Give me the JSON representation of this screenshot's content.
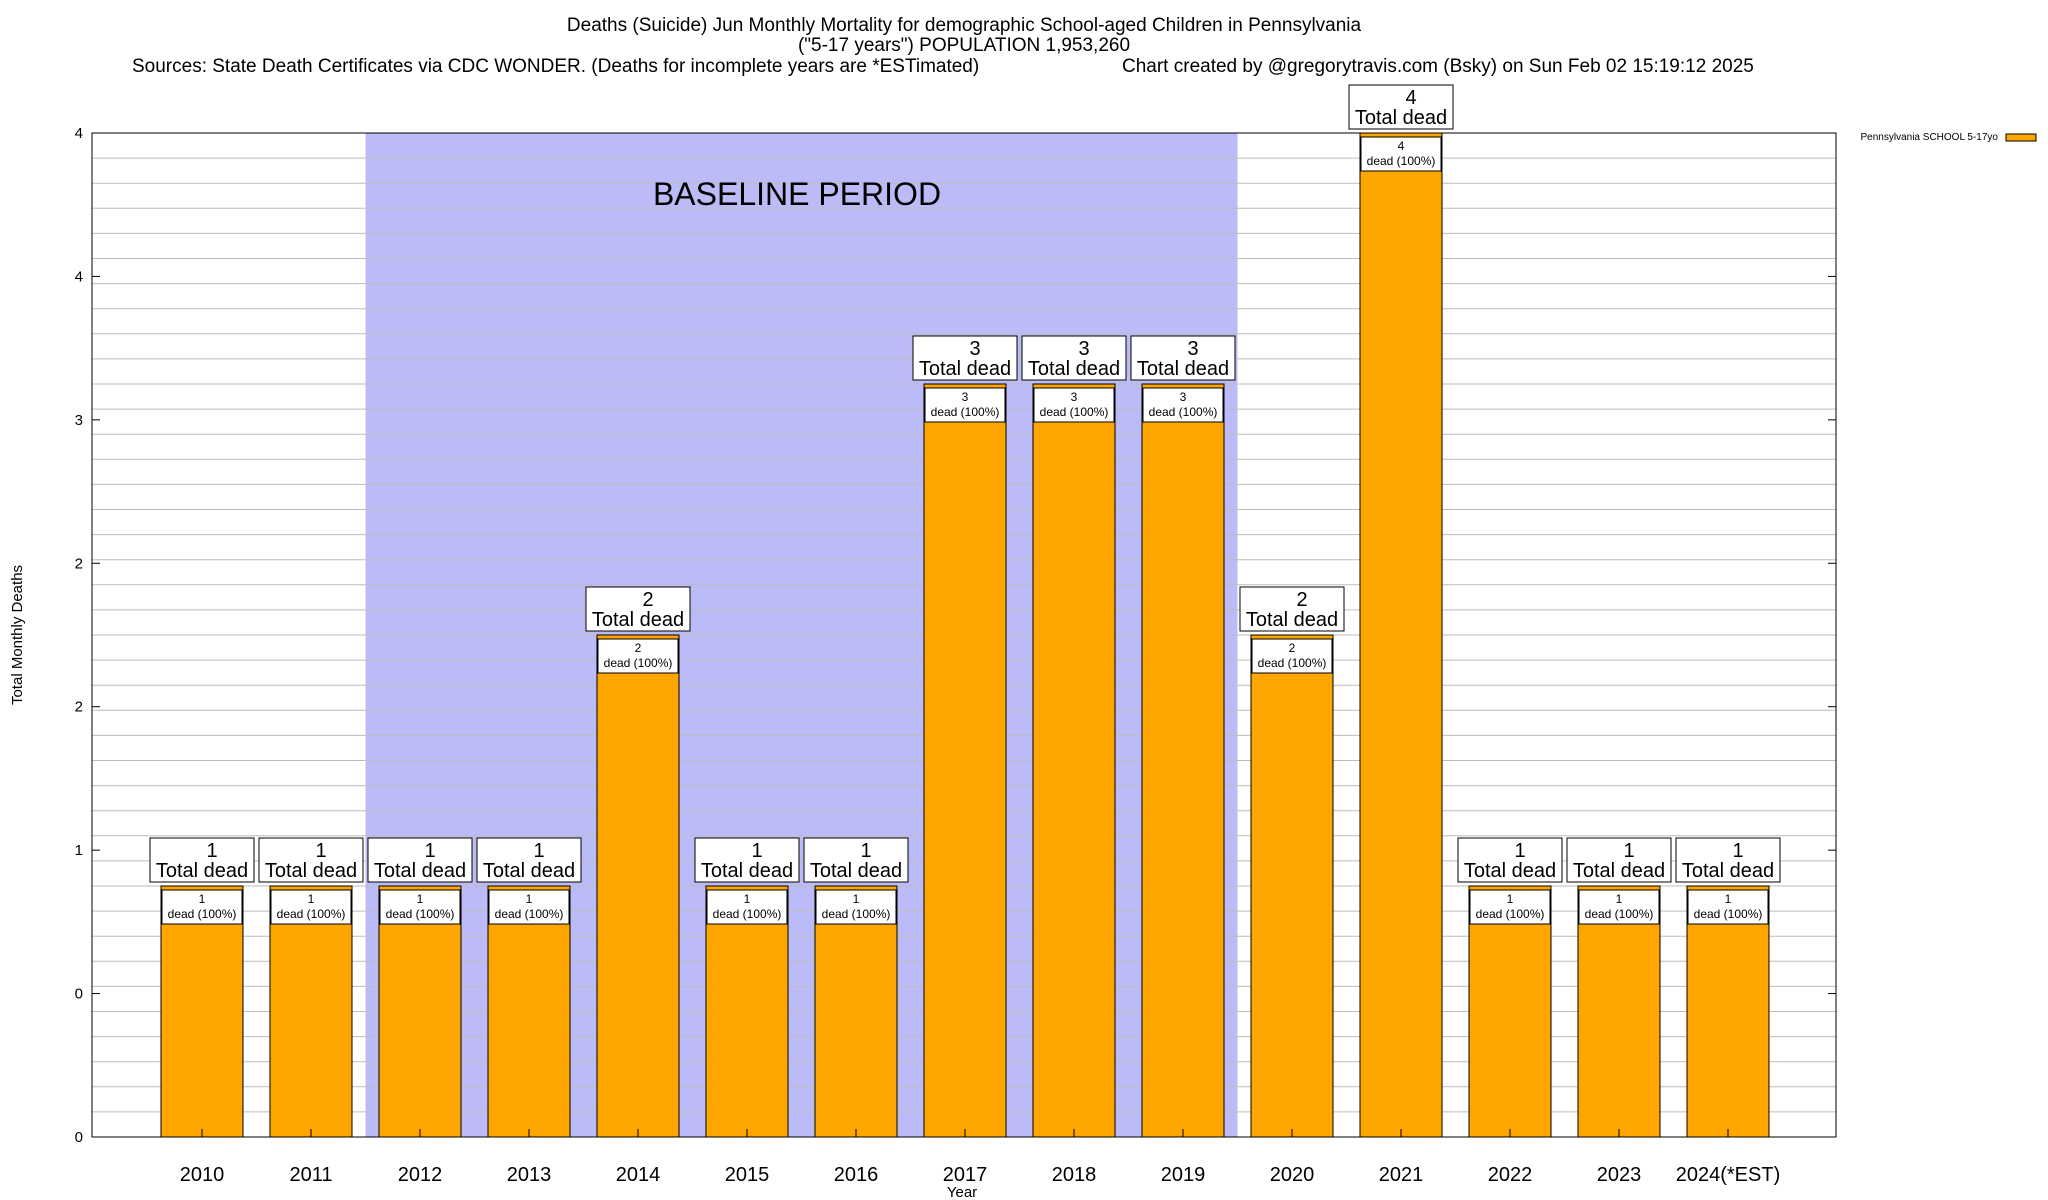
{
  "title_lines": [
    "Deaths (Suicide) Jun Monthly Mortality for demographic School-aged Children in Pennsylvania",
    "(\"5-17 years\") POPULATION 1,953,260"
  ],
  "sources_line": "Sources: State Death Certificates via CDC WONDER. (Deaths for incomplete years are *ESTimated)",
  "credit_line": "Chart created by @gregorytravis.com (Bsky) on Sun Feb 02 15:19:12 2025",
  "baseline_label": "BASELINE PERIOD",
  "colors": {
    "bar": "#FFA500",
    "baseline_band": "#BBBBF7"
  },
  "chart_data": {
    "type": "bar",
    "title": "Deaths (Suicide) Jun Monthly Mortality for demographic School-aged Children in Pennsylvania (\"5-17 years\") POPULATION 1,953,260",
    "xlabel": "Year",
    "ylabel": "Total Monthly Deaths",
    "ylim": [
      0,
      4
    ],
    "grid": true,
    "legend_position": "top-right",
    "categories": [
      "2010",
      "2011",
      "2012",
      "2013",
      "2014",
      "2015",
      "2016",
      "2017",
      "2018",
      "2019",
      "2020",
      "2021",
      "2022",
      "2023",
      "2024(*EST)"
    ],
    "series": [
      {
        "name": "Pennsylvania SCHOOL 5-17yo",
        "values": [
          1,
          1,
          1,
          1,
          2,
          1,
          1,
          3,
          3,
          3,
          2,
          4,
          1,
          1,
          1
        ]
      }
    ],
    "y_tick_labels": [
      "0",
      "0",
      "1",
      "2",
      "2",
      "3",
      "4",
      "4"
    ],
    "total_label": "Total dead",
    "inner_label": "dead (100%)",
    "baseline_period": [
      "2012",
      "2019"
    ]
  }
}
